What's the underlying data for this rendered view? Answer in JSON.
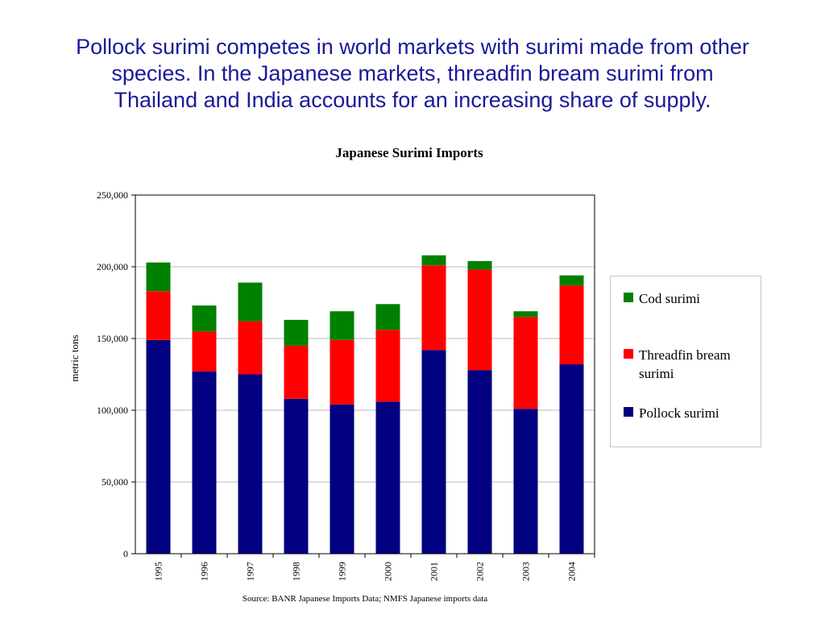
{
  "headline": {
    "lines": [
      "Pollock surimi competes in world markets with surimi made from other",
      "species.  In the Japanese markets, threadfin bream surimi from",
      "Thailand and India accounts for an increasing share of supply."
    ]
  },
  "chart_data": {
    "type": "bar",
    "stacked": true,
    "title": "Japanese Surimi Imports",
    "xlabel": "",
    "ylabel": "metric tons",
    "ylim": [
      0,
      250000
    ],
    "yticks": [
      "0",
      "50,000",
      "100,000",
      "150,000",
      "200,000",
      "250,000"
    ],
    "grid": true,
    "legend_position": "right",
    "categories": [
      "1995",
      "1996",
      "1997",
      "1998",
      "1999",
      "2000",
      "2001",
      "2002",
      "2003",
      "2004"
    ],
    "series": [
      {
        "name": "Pollock surimi",
        "color": "#000080",
        "values": [
          149000,
          127000,
          125000,
          108000,
          104000,
          106000,
          142000,
          128000,
          101000,
          132000
        ]
      },
      {
        "name": "Threadfin bream surimi",
        "color": "#ff0000",
        "values": [
          34000,
          28000,
          37000,
          37000,
          45000,
          50000,
          59000,
          70000,
          64000,
          55000
        ]
      },
      {
        "name": "Cod surimi",
        "color": "#008000",
        "values": [
          20000,
          18000,
          27000,
          18000,
          20000,
          18000,
          7000,
          6000,
          4000,
          7000
        ]
      }
    ],
    "legend_order": [
      "Cod surimi",
      "Threadfin bream surimi",
      "Pollock surimi"
    ],
    "source": "Source: BANR Japanese Imports Data; NMFS Japanese imports data"
  }
}
